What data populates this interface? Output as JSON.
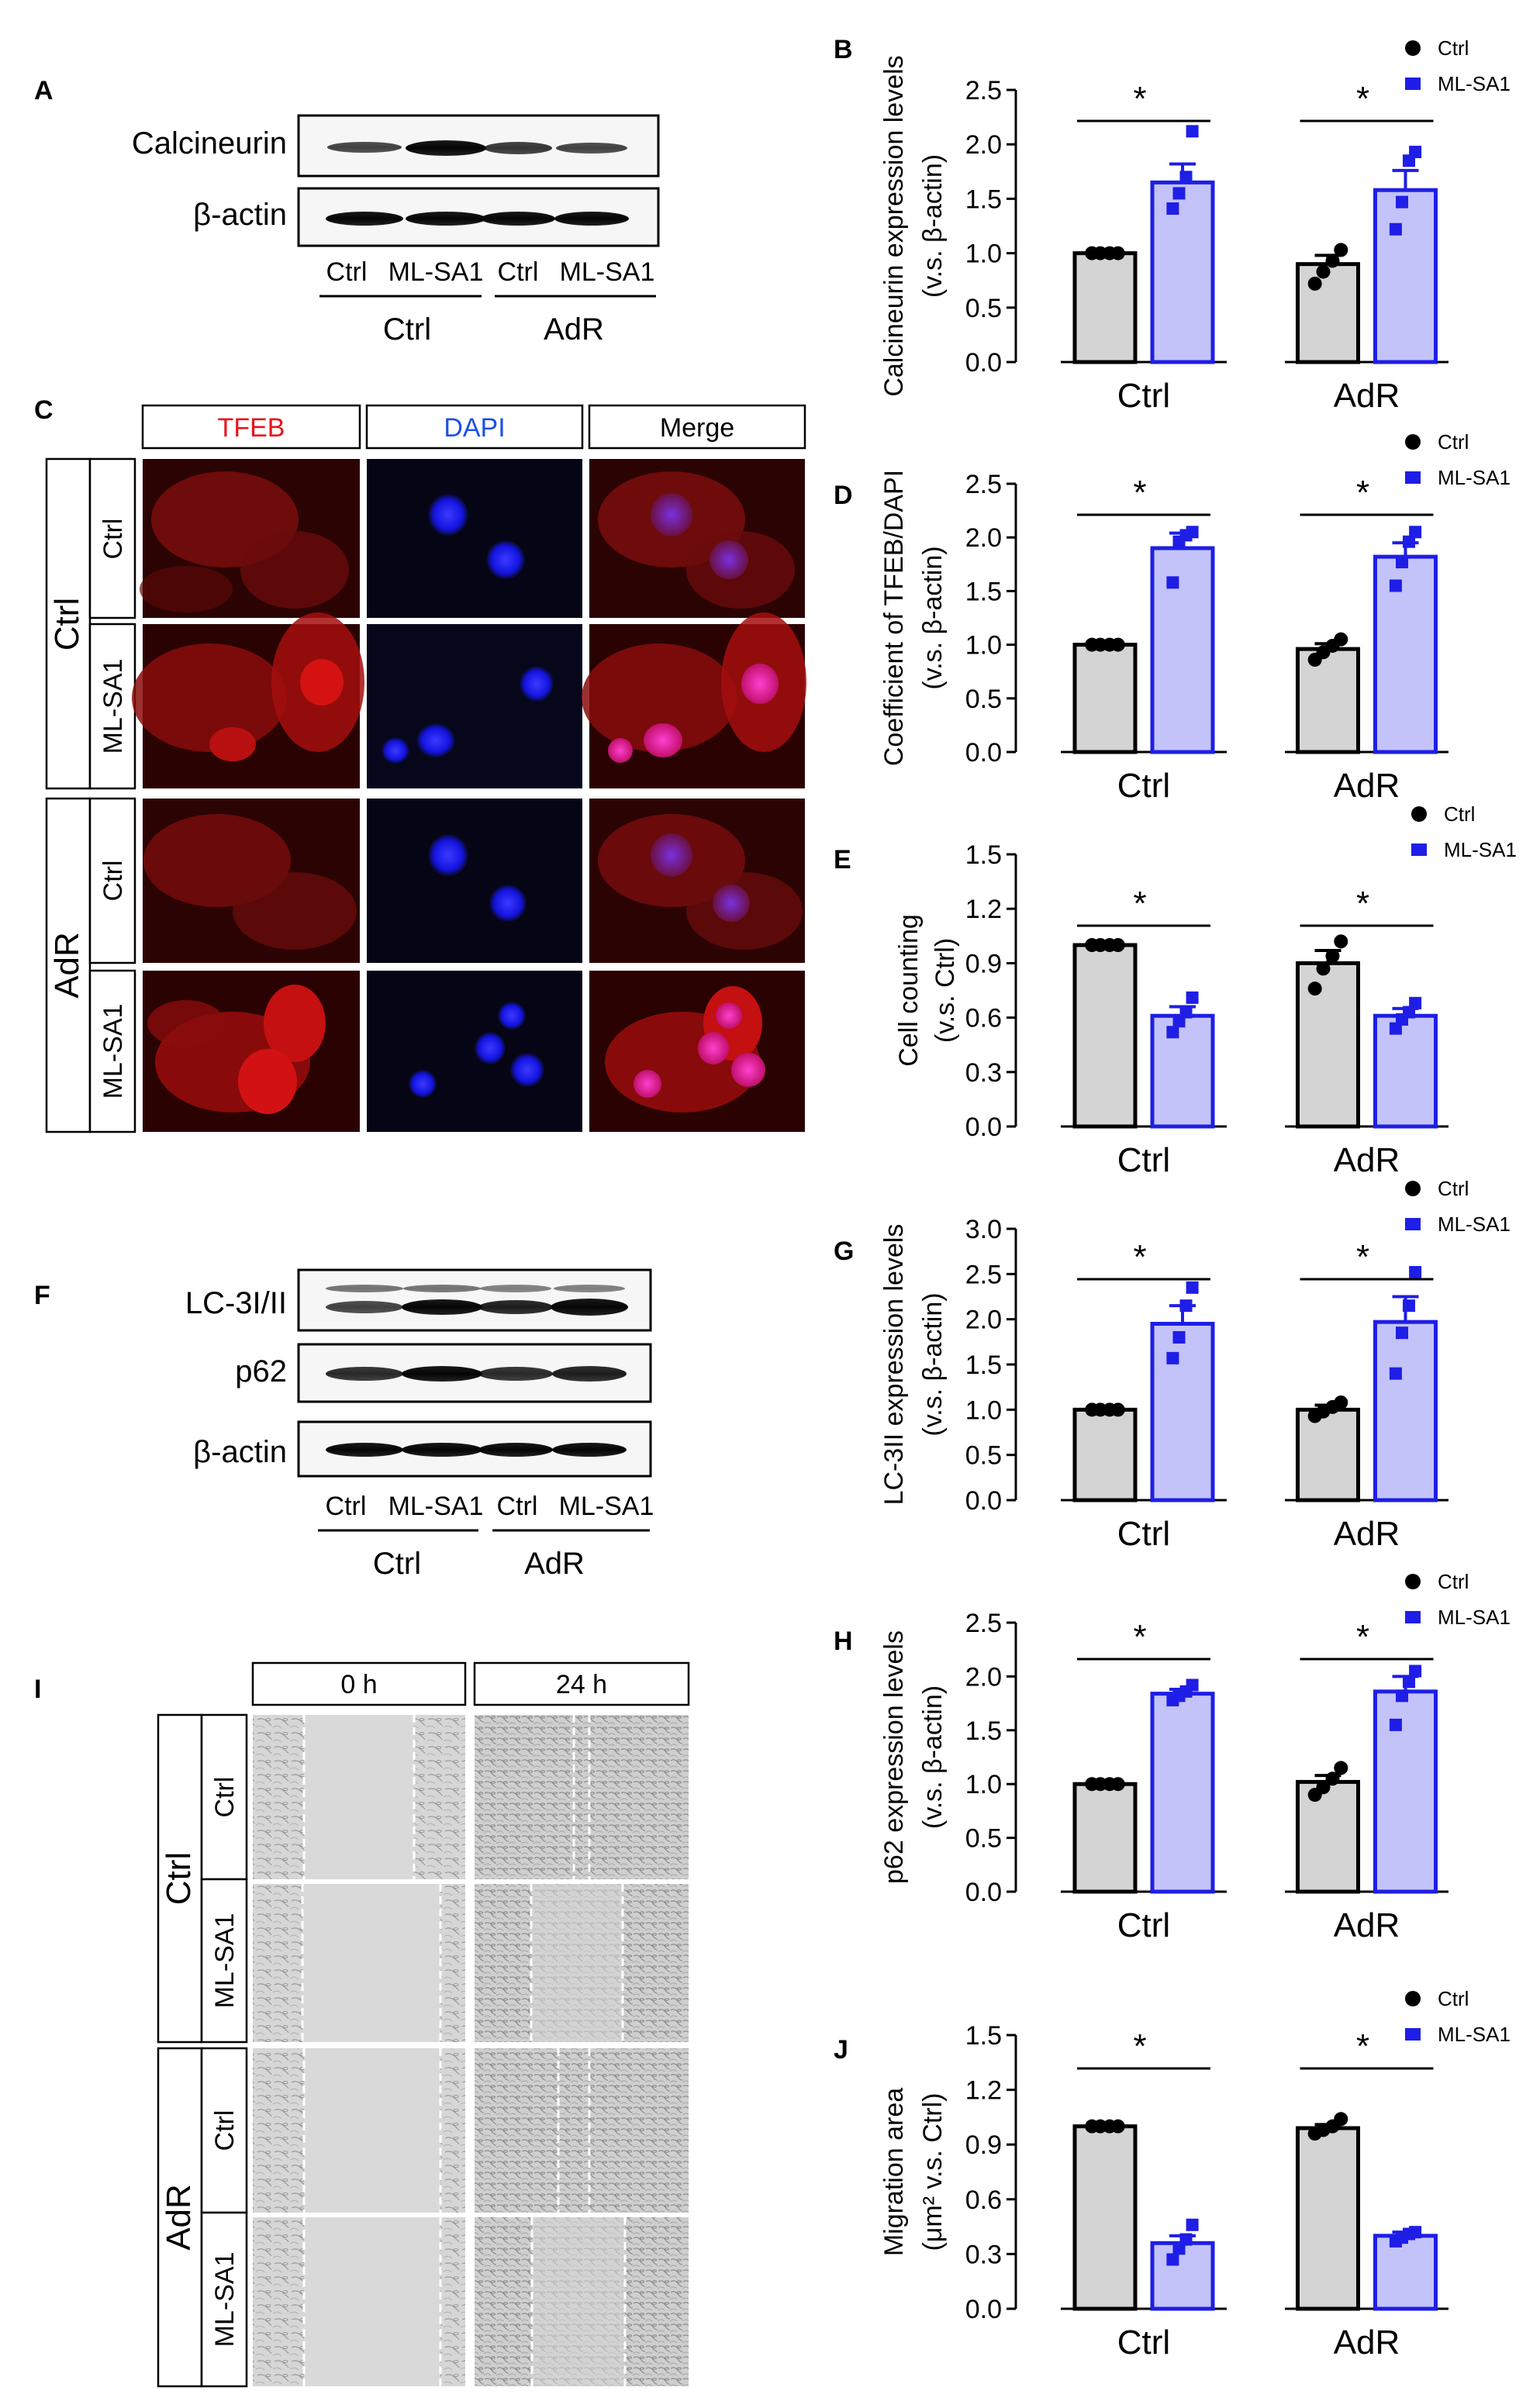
{
  "panels": {
    "A": {
      "letter": "A",
      "blots": [
        "Calcineurin",
        "β-actin"
      ],
      "lanes": [
        "Ctrl",
        "ML-SA1",
        "Ctrl",
        "ML-SA1"
      ],
      "groups": [
        "Ctrl",
        "AdR"
      ]
    },
    "C": {
      "letter": "C",
      "columns": [
        "TFEB",
        "DAPI",
        "Merge"
      ],
      "column_colors": [
        "#e8141c",
        "#1e50e6",
        "#000000"
      ],
      "groups": [
        "Ctrl",
        "AdR"
      ],
      "rows": [
        "Ctrl",
        "ML-SA1",
        "Ctrl",
        "ML-SA1"
      ]
    },
    "F": {
      "letter": "F",
      "blots": [
        "LC-3I/II",
        "p62",
        "β-actin"
      ],
      "lanes": [
        "Ctrl",
        "ML-SA1",
        "Ctrl",
        "ML-SA1"
      ],
      "groups": [
        "Ctrl",
        "AdR"
      ]
    },
    "I": {
      "letter": "I",
      "columns": [
        "0 h",
        "24 h"
      ],
      "groups": [
        "Ctrl",
        "AdR"
      ],
      "rows": [
        "Ctrl",
        "ML-SA1",
        "Ctrl",
        "ML-SA1"
      ]
    }
  },
  "legend": {
    "items": [
      "Ctrl",
      "ML-SA1"
    ]
  },
  "colors": {
    "ctrl_fill": "#d4d4d4",
    "mlsa1_fill": "#c3c3fa",
    "mlsa1_edge": "#1e1ee6",
    "ctrl_point": "#000000",
    "mlsa1_point": "#1e1ee6"
  },
  "chart_data": [
    {
      "letter": "B",
      "type": "bar",
      "categories": [
        "Ctrl",
        "AdR"
      ],
      "series": [
        {
          "name": "Ctrl",
          "values": [
            1.0,
            0.9
          ],
          "errors": [
            0.01,
            0.08
          ],
          "points": [
            [
              1.0,
              1.0,
              1.0,
              1.0
            ],
            [
              0.72,
              0.83,
              0.93,
              1.03
            ]
          ]
        },
        {
          "name": "ML-SA1",
          "values": [
            1.65,
            1.58
          ],
          "errors": [
            0.17,
            0.18
          ],
          "points": [
            [
              1.41,
              1.55,
              1.7,
              2.12
            ],
            [
              1.22,
              1.47,
              1.85,
              1.93
            ]
          ]
        }
      ],
      "ylabel": "Calcineurin expression levels (v.s. β-actin)",
      "ylim": [
        0,
        2.5
      ],
      "yticks": [
        "0.0",
        "0.5",
        "1.0",
        "1.5",
        "2.0",
        "2.5"
      ],
      "significance": [
        "*",
        "*"
      ]
    },
    {
      "letter": "D",
      "type": "bar",
      "categories": [
        "Ctrl",
        "AdR"
      ],
      "series": [
        {
          "name": "Ctrl",
          "values": [
            1.0,
            0.96
          ],
          "errors": [
            0.01,
            0.05
          ],
          "points": [
            [
              1.0,
              1.0,
              1.0,
              1.0
            ],
            [
              0.86,
              0.93,
              0.99,
              1.05
            ]
          ]
        },
        {
          "name": "ML-SA1",
          "values": [
            1.9,
            1.82
          ],
          "errors": [
            0.14,
            0.13
          ],
          "points": [
            [
              1.58,
              1.96,
              2.02,
              2.05
            ],
            [
              1.55,
              1.77,
              1.96,
              2.05
            ]
          ]
        }
      ],
      "ylabel": "Coefficient of TFEB/DAPI (v.s. β-actin)",
      "ylim": [
        0,
        2.5
      ],
      "yticks": [
        "0.0",
        "0.5",
        "1.0",
        "1.5",
        "2.0",
        "2.5"
      ],
      "significance": [
        "*",
        "*"
      ]
    },
    {
      "letter": "E",
      "type": "bar",
      "categories": [
        "Ctrl",
        "AdR"
      ],
      "series": [
        {
          "name": "Ctrl",
          "values": [
            1.0,
            0.9
          ],
          "errors": [
            0.005,
            0.07
          ],
          "points": [
            [
              1.0,
              1.0,
              1.0,
              1.0
            ],
            [
              0.76,
              0.87,
              0.94,
              1.02
            ]
          ]
        },
        {
          "name": "ML-SA1",
          "values": [
            0.61,
            0.61
          ],
          "errors": [
            0.05,
            0.04
          ],
          "points": [
            [
              0.52,
              0.58,
              0.63,
              0.71
            ],
            [
              0.54,
              0.59,
              0.63,
              0.68
            ]
          ]
        }
      ],
      "ylabel": "Cell counting (v.s. Ctrl)",
      "ylim": [
        0,
        1.5
      ],
      "yticks": [
        "0.0",
        "0.3",
        "0.6",
        "0.9",
        "1.2",
        "1.5"
      ],
      "significance": [
        "*",
        "*"
      ]
    },
    {
      "letter": "G",
      "type": "bar",
      "categories": [
        "Ctrl",
        "AdR"
      ],
      "series": [
        {
          "name": "Ctrl",
          "values": [
            1.0,
            1.0
          ],
          "errors": [
            0.005,
            0.05
          ],
          "points": [
            [
              1.0,
              1.0,
              1.0,
              1.0
            ],
            [
              0.93,
              0.98,
              1.03,
              1.08
            ]
          ]
        },
        {
          "name": "ML-SA1",
          "values": [
            1.95,
            1.97
          ],
          "errors": [
            0.2,
            0.28
          ],
          "points": [
            [
              1.57,
              1.8,
              2.15,
              2.35
            ],
            [
              1.4,
              1.85,
              2.15,
              2.52
            ]
          ]
        }
      ],
      "ylabel": "LC-3II expression levels (v.s. β-actin)",
      "ylim": [
        0,
        3.0
      ],
      "yticks": [
        "0.0",
        "0.5",
        "1.0",
        "1.5",
        "2.0",
        "2.5",
        "3.0"
      ],
      "significance": [
        "*",
        "*"
      ]
    },
    {
      "letter": "H",
      "type": "bar",
      "categories": [
        "Ctrl",
        "AdR"
      ],
      "series": [
        {
          "name": "Ctrl",
          "values": [
            1.0,
            1.02
          ],
          "errors": [
            0.005,
            0.06
          ],
          "points": [
            [
              1.0,
              1.0,
              1.0,
              1.0
            ],
            [
              0.9,
              0.97,
              1.05,
              1.15
            ]
          ]
        },
        {
          "name": "ML-SA1",
          "values": [
            1.84,
            1.86
          ],
          "errors": [
            0.04,
            0.14
          ],
          "points": [
            [
              1.78,
              1.82,
              1.86,
              1.92
            ],
            [
              1.55,
              1.82,
              1.95,
              2.05
            ]
          ]
        }
      ],
      "ylabel": "p62 expression levels (v.s. β-actin)",
      "ylim": [
        0,
        2.5
      ],
      "yticks": [
        "0.0",
        "0.5",
        "1.0",
        "1.5",
        "2.0",
        "2.5"
      ],
      "significance": [
        "*",
        "*"
      ]
    },
    {
      "letter": "J",
      "type": "bar",
      "categories": [
        "Ctrl",
        "AdR"
      ],
      "series": [
        {
          "name": "Ctrl",
          "values": [
            1.0,
            0.99
          ],
          "errors": [
            0.005,
            0.02
          ],
          "points": [
            [
              1.0,
              1.0,
              1.0,
              1.0
            ],
            [
              0.96,
              0.98,
              1.0,
              1.04
            ]
          ]
        },
        {
          "name": "ML-SA1",
          "values": [
            0.36,
            0.4
          ],
          "errors": [
            0.04,
            0.02
          ],
          "points": [
            [
              0.27,
              0.33,
              0.38,
              0.46
            ],
            [
              0.37,
              0.39,
              0.41,
              0.42
            ]
          ]
        }
      ],
      "ylabel": "Migration area (μm² v.s. Ctrl)",
      "ylim": [
        0,
        1.5
      ],
      "yticks": [
        "0.0",
        "0.3",
        "0.6",
        "0.9",
        "1.2",
        "1.5"
      ],
      "significance": [
        "*",
        "*"
      ]
    }
  ]
}
